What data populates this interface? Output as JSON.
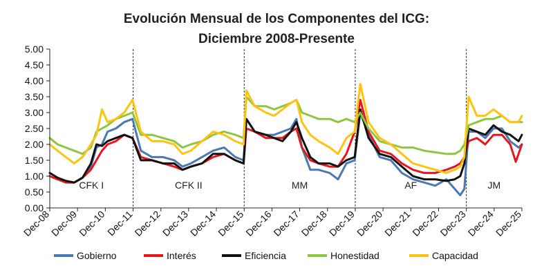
{
  "chart_data": {
    "type": "line",
    "title": "Evolución Mensual de los Componentes del ICG:",
    "subtitle": "Diciembre 2008-Presente",
    "xlabel": "",
    "ylabel": "",
    "ylim": [
      0,
      5
    ],
    "y_ticks": [
      "0.00",
      "0.50",
      "1.00",
      "1.50",
      "2.00",
      "2.50",
      "3.00",
      "3.50",
      "4.00",
      "4.50",
      "5.00"
    ],
    "x_ticks": [
      "Dec-08",
      "Dec-09",
      "Dec-10",
      "Dec-11",
      "Dec-12",
      "Dec-13",
      "Dec-14",
      "Dec-15",
      "Dec-16",
      "Dec-17",
      "Dec-18",
      "Dec-19",
      "Dec-20",
      "Dec-21",
      "Dec-22",
      "Dec-23",
      "Dec-24",
      "Dec-25"
    ],
    "periods": [
      {
        "label": "CFK I",
        "start": 2008.92,
        "end": 2011.92
      },
      {
        "label": "CFK II",
        "start": 2011.92,
        "end": 2015.92
      },
      {
        "label": "MM",
        "start": 2015.92,
        "end": 2019.92
      },
      {
        "label": "AF",
        "start": 2019.92,
        "end": 2023.92
      },
      {
        "label": "JM",
        "start": 2023.92,
        "end": 2025.92
      }
    ],
    "period_dividers": [
      2011.92,
      2015.92,
      2019.92,
      2023.92
    ],
    "legend_position": "bottom",
    "series": [
      {
        "name": "Gobierno",
        "color": "#4a78b4",
        "points": [
          [
            2008.92,
            1.1
          ],
          [
            2009.2,
            0.95
          ],
          [
            2009.5,
            0.85
          ],
          [
            2009.8,
            0.8
          ],
          [
            2010.1,
            0.95
          ],
          [
            2010.4,
            1.3
          ],
          [
            2010.6,
            1.9
          ],
          [
            2010.8,
            2.0
          ],
          [
            2011.0,
            2.4
          ],
          [
            2011.3,
            2.5
          ],
          [
            2011.6,
            2.7
          ],
          [
            2011.9,
            2.8
          ],
          [
            2012.2,
            1.8
          ],
          [
            2012.6,
            1.6
          ],
          [
            2013.0,
            1.6
          ],
          [
            2013.4,
            1.5
          ],
          [
            2013.7,
            1.3
          ],
          [
            2014.0,
            1.4
          ],
          [
            2014.4,
            1.6
          ],
          [
            2014.8,
            1.8
          ],
          [
            2015.2,
            1.9
          ],
          [
            2015.6,
            1.6
          ],
          [
            2015.9,
            1.5
          ],
          [
            2016.0,
            2.8
          ],
          [
            2016.3,
            2.4
          ],
          [
            2016.7,
            2.3
          ],
          [
            2017.0,
            2.3
          ],
          [
            2017.3,
            2.4
          ],
          [
            2017.6,
            2.5
          ],
          [
            2017.8,
            2.8
          ],
          [
            2018.0,
            1.9
          ],
          [
            2018.3,
            1.2
          ],
          [
            2018.6,
            1.2
          ],
          [
            2019.0,
            1.1
          ],
          [
            2019.3,
            0.9
          ],
          [
            2019.6,
            1.4
          ],
          [
            2019.9,
            1.5
          ],
          [
            2020.1,
            3.0
          ],
          [
            2020.4,
            2.3
          ],
          [
            2020.8,
            1.6
          ],
          [
            2021.2,
            1.5
          ],
          [
            2021.6,
            1.1
          ],
          [
            2022.0,
            0.9
          ],
          [
            2022.4,
            0.8
          ],
          [
            2022.8,
            0.7
          ],
          [
            2023.2,
            0.9
          ],
          [
            2023.5,
            0.6
          ],
          [
            2023.7,
            0.4
          ],
          [
            2023.85,
            0.6
          ],
          [
            2024.0,
            2.4
          ],
          [
            2024.3,
            2.4
          ],
          [
            2024.6,
            2.2
          ],
          [
            2024.9,
            2.5
          ],
          [
            2025.2,
            2.5
          ],
          [
            2025.5,
            2.1
          ],
          [
            2025.8,
            1.9
          ],
          [
            2025.92,
            2.0
          ]
        ]
      },
      {
        "name": "Interés",
        "color": "#e8151b",
        "points": [
          [
            2008.92,
            1.0
          ],
          [
            2009.2,
            0.9
          ],
          [
            2009.5,
            0.8
          ],
          [
            2009.8,
            0.8
          ],
          [
            2010.1,
            0.95
          ],
          [
            2010.4,
            1.2
          ],
          [
            2010.6,
            1.5
          ],
          [
            2010.8,
            1.8
          ],
          [
            2011.0,
            2.0
          ],
          [
            2011.3,
            2.1
          ],
          [
            2011.6,
            2.3
          ],
          [
            2011.9,
            2.2
          ],
          [
            2012.2,
            1.6
          ],
          [
            2012.6,
            1.5
          ],
          [
            2013.0,
            1.4
          ],
          [
            2013.4,
            1.3
          ],
          [
            2013.7,
            1.2
          ],
          [
            2014.0,
            1.3
          ],
          [
            2014.4,
            1.4
          ],
          [
            2014.8,
            1.6
          ],
          [
            2015.2,
            1.7
          ],
          [
            2015.6,
            1.5
          ],
          [
            2015.9,
            1.4
          ],
          [
            2016.0,
            2.5
          ],
          [
            2016.3,
            2.4
          ],
          [
            2016.7,
            2.2
          ],
          [
            2017.0,
            2.2
          ],
          [
            2017.3,
            2.2
          ],
          [
            2017.6,
            2.4
          ],
          [
            2017.8,
            2.5
          ],
          [
            2018.0,
            1.9
          ],
          [
            2018.3,
            1.5
          ],
          [
            2018.6,
            1.4
          ],
          [
            2019.0,
            1.3
          ],
          [
            2019.3,
            1.3
          ],
          [
            2019.6,
            1.7
          ],
          [
            2019.9,
            2.4
          ],
          [
            2020.1,
            3.4
          ],
          [
            2020.4,
            2.4
          ],
          [
            2020.8,
            1.8
          ],
          [
            2021.2,
            1.7
          ],
          [
            2021.6,
            1.4
          ],
          [
            2022.0,
            1.2
          ],
          [
            2022.4,
            1.1
          ],
          [
            2022.8,
            1.1
          ],
          [
            2023.2,
            1.2
          ],
          [
            2023.5,
            1.3
          ],
          [
            2023.7,
            1.4
          ],
          [
            2023.85,
            1.6
          ],
          [
            2024.0,
            2.1
          ],
          [
            2024.3,
            2.2
          ],
          [
            2024.6,
            2.0
          ],
          [
            2024.9,
            2.3
          ],
          [
            2025.2,
            2.3
          ],
          [
            2025.5,
            2.0
          ],
          [
            2025.7,
            1.45
          ],
          [
            2025.92,
            2.0
          ]
        ]
      },
      {
        "name": "Eficiencia",
        "color": "#111111",
        "points": [
          [
            2008.92,
            1.1
          ],
          [
            2009.2,
            0.95
          ],
          [
            2009.5,
            0.85
          ],
          [
            2009.8,
            0.8
          ],
          [
            2010.1,
            0.95
          ],
          [
            2010.4,
            1.4
          ],
          [
            2010.6,
            2.0
          ],
          [
            2010.8,
            1.95
          ],
          [
            2011.0,
            2.1
          ],
          [
            2011.3,
            2.2
          ],
          [
            2011.6,
            2.3
          ],
          [
            2011.9,
            2.2
          ],
          [
            2012.2,
            1.5
          ],
          [
            2012.6,
            1.5
          ],
          [
            2013.0,
            1.4
          ],
          [
            2013.4,
            1.4
          ],
          [
            2013.7,
            1.2
          ],
          [
            2014.0,
            1.3
          ],
          [
            2014.4,
            1.4
          ],
          [
            2014.8,
            1.7
          ],
          [
            2015.2,
            1.7
          ],
          [
            2015.6,
            1.5
          ],
          [
            2015.9,
            1.4
          ],
          [
            2016.0,
            2.8
          ],
          [
            2016.3,
            2.4
          ],
          [
            2016.7,
            2.3
          ],
          [
            2017.0,
            2.2
          ],
          [
            2017.3,
            2.1
          ],
          [
            2017.6,
            2.4
          ],
          [
            2017.8,
            2.7
          ],
          [
            2018.0,
            2.2
          ],
          [
            2018.3,
            1.6
          ],
          [
            2018.6,
            1.4
          ],
          [
            2019.0,
            1.4
          ],
          [
            2019.3,
            1.3
          ],
          [
            2019.6,
            1.5
          ],
          [
            2019.9,
            1.6
          ],
          [
            2020.1,
            3.1
          ],
          [
            2020.4,
            2.2
          ],
          [
            2020.8,
            1.7
          ],
          [
            2021.2,
            1.6
          ],
          [
            2021.6,
            1.3
          ],
          [
            2022.0,
            1.0
          ],
          [
            2022.4,
            0.9
          ],
          [
            2022.8,
            0.9
          ],
          [
            2023.2,
            0.85
          ],
          [
            2023.5,
            0.9
          ],
          [
            2023.7,
            1.0
          ],
          [
            2023.85,
            1.4
          ],
          [
            2024.0,
            2.5
          ],
          [
            2024.3,
            2.4
          ],
          [
            2024.6,
            2.3
          ],
          [
            2024.9,
            2.6
          ],
          [
            2025.2,
            2.4
          ],
          [
            2025.5,
            2.3
          ],
          [
            2025.8,
            2.1
          ],
          [
            2025.92,
            2.3
          ]
        ]
      },
      {
        "name": "Honestidad",
        "color": "#8dc63f",
        "points": [
          [
            2008.92,
            2.2
          ],
          [
            2009.2,
            2.0
          ],
          [
            2009.5,
            1.9
          ],
          [
            2009.8,
            1.8
          ],
          [
            2010.1,
            1.7
          ],
          [
            2010.4,
            1.9
          ],
          [
            2010.6,
            2.4
          ],
          [
            2010.8,
            2.5
          ],
          [
            2011.0,
            2.6
          ],
          [
            2011.3,
            2.8
          ],
          [
            2011.6,
            2.9
          ],
          [
            2011.9,
            3.0
          ],
          [
            2012.2,
            2.3
          ],
          [
            2012.6,
            2.3
          ],
          [
            2013.0,
            2.2
          ],
          [
            2013.4,
            2.1
          ],
          [
            2013.7,
            1.9
          ],
          [
            2014.0,
            2.0
          ],
          [
            2014.4,
            2.1
          ],
          [
            2014.8,
            2.3
          ],
          [
            2015.2,
            2.4
          ],
          [
            2015.6,
            2.3
          ],
          [
            2015.9,
            2.2
          ],
          [
            2016.0,
            3.5
          ],
          [
            2016.3,
            3.2
          ],
          [
            2016.7,
            3.2
          ],
          [
            2017.0,
            3.1
          ],
          [
            2017.3,
            3.2
          ],
          [
            2017.6,
            3.3
          ],
          [
            2017.8,
            3.4
          ],
          [
            2018.0,
            3.0
          ],
          [
            2018.3,
            2.9
          ],
          [
            2018.6,
            2.8
          ],
          [
            2019.0,
            2.8
          ],
          [
            2019.3,
            2.7
          ],
          [
            2019.6,
            2.8
          ],
          [
            2019.9,
            2.7
          ],
          [
            2020.1,
            3.0
          ],
          [
            2020.4,
            2.5
          ],
          [
            2020.8,
            2.1
          ],
          [
            2021.2,
            2.0
          ],
          [
            2021.6,
            1.9
          ],
          [
            2022.0,
            1.9
          ],
          [
            2022.4,
            1.8
          ],
          [
            2022.8,
            1.75
          ],
          [
            2023.2,
            1.7
          ],
          [
            2023.5,
            1.7
          ],
          [
            2023.7,
            1.8
          ],
          [
            2023.85,
            2.0
          ],
          [
            2024.0,
            2.6
          ],
          [
            2024.3,
            2.7
          ],
          [
            2024.6,
            2.8
          ],
          [
            2024.9,
            2.8
          ],
          [
            2025.2,
            2.9
          ],
          [
            2025.5,
            2.7
          ],
          [
            2025.8,
            2.7
          ],
          [
            2025.92,
            2.7
          ]
        ]
      },
      {
        "name": "Capacidad",
        "color": "#ffc20e",
        "points": [
          [
            2008.92,
            2.0
          ],
          [
            2009.2,
            1.8
          ],
          [
            2009.5,
            1.6
          ],
          [
            2009.8,
            1.4
          ],
          [
            2010.1,
            1.6
          ],
          [
            2010.4,
            2.0
          ],
          [
            2010.6,
            2.3
          ],
          [
            2010.8,
            3.1
          ],
          [
            2011.0,
            2.7
          ],
          [
            2011.3,
            2.8
          ],
          [
            2011.6,
            3.0
          ],
          [
            2011.9,
            3.4
          ],
          [
            2012.2,
            2.4
          ],
          [
            2012.6,
            2.1
          ],
          [
            2013.0,
            2.1
          ],
          [
            2013.4,
            2.0
          ],
          [
            2013.7,
            1.7
          ],
          [
            2014.0,
            1.8
          ],
          [
            2014.4,
            2.1
          ],
          [
            2014.8,
            2.4
          ],
          [
            2015.2,
            2.3
          ],
          [
            2015.6,
            2.1
          ],
          [
            2015.9,
            2.0
          ],
          [
            2016.0,
            3.7
          ],
          [
            2016.3,
            3.2
          ],
          [
            2016.7,
            3.0
          ],
          [
            2017.0,
            2.9
          ],
          [
            2017.3,
            3.1
          ],
          [
            2017.6,
            3.3
          ],
          [
            2017.8,
            3.4
          ],
          [
            2018.0,
            2.7
          ],
          [
            2018.3,
            2.3
          ],
          [
            2018.6,
            2.1
          ],
          [
            2019.0,
            1.9
          ],
          [
            2019.3,
            1.7
          ],
          [
            2019.6,
            2.2
          ],
          [
            2019.9,
            2.4
          ],
          [
            2020.1,
            3.9
          ],
          [
            2020.4,
            2.7
          ],
          [
            2020.8,
            2.2
          ],
          [
            2021.2,
            2.0
          ],
          [
            2021.6,
            1.7
          ],
          [
            2022.0,
            1.4
          ],
          [
            2022.4,
            1.3
          ],
          [
            2022.8,
            1.2
          ],
          [
            2023.2,
            1.1
          ],
          [
            2023.5,
            1.2
          ],
          [
            2023.7,
            1.3
          ],
          [
            2023.85,
            1.6
          ],
          [
            2024.0,
            3.5
          ],
          [
            2024.3,
            2.9
          ],
          [
            2024.6,
            2.9
          ],
          [
            2024.9,
            3.1
          ],
          [
            2025.2,
            2.9
          ],
          [
            2025.5,
            2.7
          ],
          [
            2025.8,
            2.7
          ],
          [
            2025.92,
            2.9
          ]
        ]
      }
    ]
  }
}
